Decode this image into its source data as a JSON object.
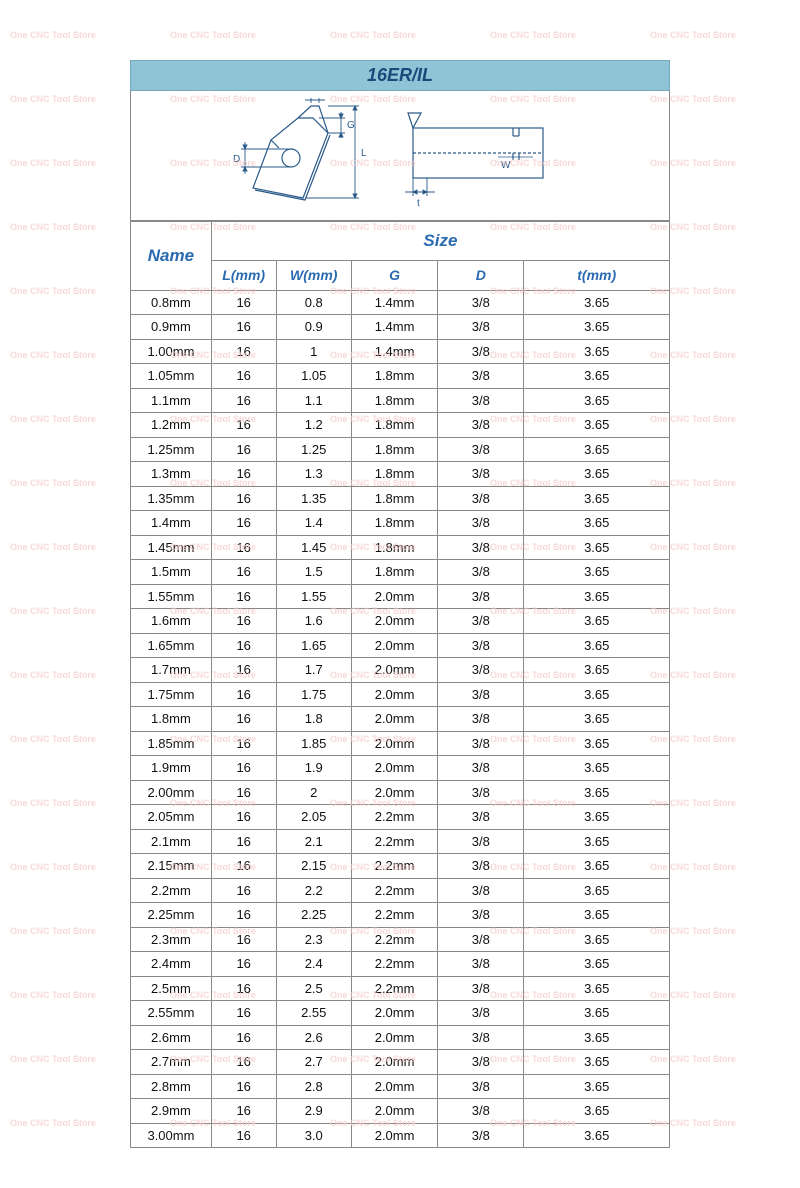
{
  "title": "16ER/IL",
  "watermark_text": "One CNC Tool Store",
  "diagram": {
    "labels": {
      "W": "W",
      "G": "G",
      "D": "D",
      "L": "L",
      "t": "t",
      "W2": "W"
    },
    "stroke": "#1a4a7a"
  },
  "headers": {
    "name": "Name",
    "size": "Size",
    "L": "L(mm)",
    "W": "W(mm)",
    "G": "G",
    "D": "D",
    "t": "t(mm)"
  },
  "rows": [
    {
      "name": "0.8mm",
      "L": "16",
      "W": "0.8",
      "G": "1.4mm",
      "D": "3/8",
      "t": "3.65"
    },
    {
      "name": "0.9mm",
      "L": "16",
      "W": "0.9",
      "G": "1.4mm",
      "D": "3/8",
      "t": "3.65"
    },
    {
      "name": "1.00mm",
      "L": "16",
      "W": "1",
      "G": "1.4mm",
      "D": "3/8",
      "t": "3.65"
    },
    {
      "name": "1.05mm",
      "L": "16",
      "W": "1.05",
      "G": "1.8mm",
      "D": "3/8",
      "t": "3.65"
    },
    {
      "name": "1.1mm",
      "L": "16",
      "W": "1.1",
      "G": "1.8mm",
      "D": "3/8",
      "t": "3.65"
    },
    {
      "name": "1.2mm",
      "L": "16",
      "W": "1.2",
      "G": "1.8mm",
      "D": "3/8",
      "t": "3.65"
    },
    {
      "name": "1.25mm",
      "L": "16",
      "W": "1.25",
      "G": "1.8mm",
      "D": "3/8",
      "t": "3.65"
    },
    {
      "name": "1.3mm",
      "L": "16",
      "W": "1.3",
      "G": "1.8mm",
      "D": "3/8",
      "t": "3.65"
    },
    {
      "name": "1.35mm",
      "L": "16",
      "W": "1.35",
      "G": "1.8mm",
      "D": "3/8",
      "t": "3.65"
    },
    {
      "name": "1.4mm",
      "L": "16",
      "W": "1.4",
      "G": "1.8mm",
      "D": "3/8",
      "t": "3.65"
    },
    {
      "name": "1.45mm",
      "L": "16",
      "W": "1.45",
      "G": "1.8mm",
      "D": "3/8",
      "t": "3.65"
    },
    {
      "name": "1.5mm",
      "L": "16",
      "W": "1.5",
      "G": "1.8mm",
      "D": "3/8",
      "t": "3.65"
    },
    {
      "name": "1.55mm",
      "L": "16",
      "W": "1.55",
      "G": "2.0mm",
      "D": "3/8",
      "t": "3.65"
    },
    {
      "name": "1.6mm",
      "L": "16",
      "W": "1.6",
      "G": "2.0mm",
      "D": "3/8",
      "t": "3.65"
    },
    {
      "name": "1.65mm",
      "L": "16",
      "W": "1.65",
      "G": "2.0mm",
      "D": "3/8",
      "t": "3.65"
    },
    {
      "name": "1.7mm",
      "L": "16",
      "W": "1.7",
      "G": "2.0mm",
      "D": "3/8",
      "t": "3.65"
    },
    {
      "name": "1.75mm",
      "L": "16",
      "W": "1.75",
      "G": "2.0mm",
      "D": "3/8",
      "t": "3.65"
    },
    {
      "name": "1.8mm",
      "L": "16",
      "W": "1.8",
      "G": "2.0mm",
      "D": "3/8",
      "t": "3.65"
    },
    {
      "name": "1.85mm",
      "L": "16",
      "W": "1.85",
      "G": "2.0mm",
      "D": "3/8",
      "t": "3.65"
    },
    {
      "name": "1.9mm",
      "L": "16",
      "W": "1.9",
      "G": "2.0mm",
      "D": "3/8",
      "t": "3.65"
    },
    {
      "name": "2.00mm",
      "L": "16",
      "W": "2",
      "G": "2.0mm",
      "D": "3/8",
      "t": "3.65"
    },
    {
      "name": "2.05mm",
      "L": "16",
      "W": "2.05",
      "G": "2.2mm",
      "D": "3/8",
      "t": "3.65"
    },
    {
      "name": "2.1mm",
      "L": "16",
      "W": "2.1",
      "G": "2.2mm",
      "D": "3/8",
      "t": "3.65"
    },
    {
      "name": "2.15mm",
      "L": "16",
      "W": "2.15",
      "G": "2.2mm",
      "D": "3/8",
      "t": "3.65"
    },
    {
      "name": "2.2mm",
      "L": "16",
      "W": "2.2",
      "G": "2.2mm",
      "D": "3/8",
      "t": "3.65"
    },
    {
      "name": "2.25mm",
      "L": "16",
      "W": "2.25",
      "G": "2.2mm",
      "D": "3/8",
      "t": "3.65"
    },
    {
      "name": "2.3mm",
      "L": "16",
      "W": "2.3",
      "G": "2.2mm",
      "D": "3/8",
      "t": "3.65"
    },
    {
      "name": "2.4mm",
      "L": "16",
      "W": "2.4",
      "G": "2.2mm",
      "D": "3/8",
      "t": "3.65"
    },
    {
      "name": "2.5mm",
      "L": "16",
      "W": "2.5",
      "G": "2.2mm",
      "D": "3/8",
      "t": "3.65"
    },
    {
      "name": "2.55mm",
      "L": "16",
      "W": "2.55",
      "G": "2.0mm",
      "D": "3/8",
      "t": "3.65"
    },
    {
      "name": "2.6mm",
      "L": "16",
      "W": "2.6",
      "G": "2.0mm",
      "D": "3/8",
      "t": "3.65"
    },
    {
      "name": "2.7mm",
      "L": "16",
      "W": "2.7",
      "G": "2.0mm",
      "D": "3/8",
      "t": "3.65"
    },
    {
      "name": "2.8mm",
      "L": "16",
      "W": "2.8",
      "G": "2.0mm",
      "D": "3/8",
      "t": "3.65"
    },
    {
      "name": "2.9mm",
      "L": "16",
      "W": "2.9",
      "G": "2.0mm",
      "D": "3/8",
      "t": "3.65"
    },
    {
      "name": "3.00mm",
      "L": "16",
      "W": "3.0",
      "G": "2.0mm",
      "D": "3/8",
      "t": "3.65"
    }
  ],
  "colors": {
    "title_bg": "#8fc4d6",
    "header_text": "#2a6ab0",
    "border": "#888888",
    "watermark": "#f5c8c8"
  }
}
